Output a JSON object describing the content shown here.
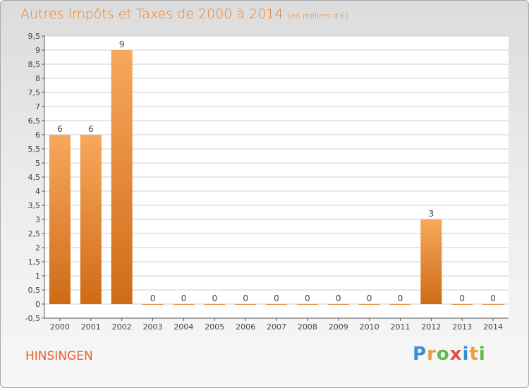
{
  "header": {
    "title": "Autres Impôts et Taxes de 2000 à 2014",
    "subtitle": "(en milliers d'€)"
  },
  "footer": {
    "place": "HINSINGEN",
    "logo_letters": [
      "P",
      "r",
      "o",
      "x",
      "i",
      "t",
      "i"
    ],
    "logo_colors": [
      "#3a8fd0",
      "#e8a13a",
      "#5fb84a",
      "#e84a4a",
      "#3a8fd0",
      "#e8a13a",
      "#5fb84a"
    ]
  },
  "colors": {
    "title": "#f07f22",
    "bar_light": "#f8a85c",
    "bar_dark": "#cf6b17",
    "grid": "#cfcfcf",
    "axis": "#555555"
  },
  "chart_data": {
    "type": "bar",
    "title": "Autres Impôts et Taxes de 2000 à 2014",
    "subtitle": "(en milliers d'€)",
    "categories": [
      "2000",
      "2001",
      "2002",
      "2003",
      "2004",
      "2005",
      "2006",
      "2007",
      "2008",
      "2009",
      "2010",
      "2011",
      "2012",
      "2013",
      "2014"
    ],
    "values": [
      6,
      6,
      9,
      0,
      0,
      0,
      0,
      0,
      0,
      0,
      0,
      0,
      3,
      0,
      0
    ],
    "data_labels": [
      "6",
      "6",
      "9",
      "0",
      "0",
      "0",
      "0",
      "0",
      "0",
      "0",
      "0",
      "0",
      "3",
      "0",
      "0"
    ],
    "ylim": [
      -0.5,
      9.5
    ],
    "yticks": [
      -0.5,
      0,
      0.5,
      1,
      1.5,
      2,
      2.5,
      3,
      3.5,
      4,
      4.5,
      5,
      5.5,
      6,
      6.5,
      7,
      7.5,
      8,
      8.5,
      9,
      9.5
    ],
    "ytick_labels": [
      "-0,5",
      "0",
      "0,5",
      "1",
      "1,5",
      "2",
      "2,5",
      "3",
      "3,5",
      "4",
      "4,5",
      "5",
      "5,5",
      "6",
      "6,5",
      "7",
      "7,5",
      "8",
      "8,5",
      "9",
      "9,5"
    ],
    "grid": true,
    "xlabel": "",
    "ylabel": ""
  }
}
